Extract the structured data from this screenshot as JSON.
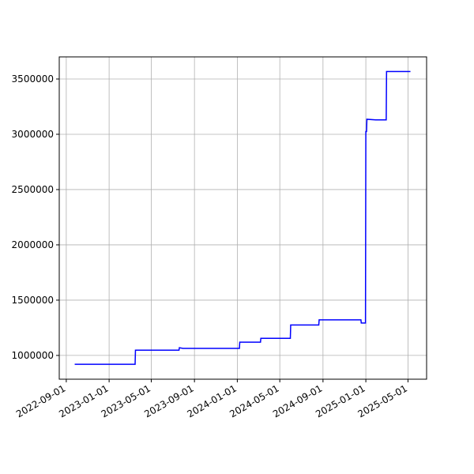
{
  "chart_data": {
    "type": "line",
    "x": [
      "2022-09-25",
      "2023-03-16",
      "2023-03-17",
      "2023-07-19",
      "2023-07-20",
      "2023-07-30",
      "2024-01-07",
      "2024-01-08",
      "2024-03-07",
      "2024-03-08",
      "2024-05-31",
      "2024-06-01",
      "2024-08-20",
      "2024-08-21",
      "2024-12-18",
      "2024-12-19",
      "2024-12-31",
      "2025-01-01",
      "2025-01-03",
      "2025-01-04",
      "2025-01-29",
      "2025-02-28",
      "2025-03-01",
      "2025-05-08"
    ],
    "values": [
      920000,
      920000,
      1048000,
      1048000,
      1070000,
      1064000,
      1064000,
      1120000,
      1120000,
      1155000,
      1155000,
      1275000,
      1275000,
      1322000,
      1322000,
      1293000,
      1293000,
      3025000,
      3025000,
      3136000,
      3130000,
      3130000,
      3568000,
      3568000
    ],
    "color": "#0000ff",
    "xlim": [
      "2022-08-12",
      "2025-06-23"
    ],
    "xticks": [
      "2022-09-01",
      "2023-01-01",
      "2023-05-01",
      "2023-09-01",
      "2024-01-01",
      "2024-05-01",
      "2024-09-01",
      "2025-01-01",
      "2025-05-01"
    ],
    "ylim": [
      785000,
      3700000
    ],
    "yticks": [
      1000000,
      1500000,
      2000000,
      2500000,
      3000000,
      3500000
    ],
    "grid": true
  }
}
